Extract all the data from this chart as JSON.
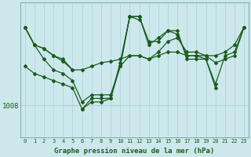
{
  "xlabel": "Graphe pression niveau de la mer (hPa)",
  "background_color": "#cce8ed",
  "line_color": "#1a5c1a",
  "tick_label_color": "#1a5c1a",
  "xlabel_color": "#1a5c1a",
  "grid_color": "#b0cdd4",
  "marker": "D",
  "marker_size": 2.0,
  "line_width": 0.9,
  "ylim_min": 1003.5,
  "ylim_max": 1022.5,
  "xlim_min": 0,
  "xlim_max": 23,
  "ytick_values": [
    1008
  ],
  "series": [
    [
      1019.0,
      1016.5,
      1016.0,
      1015.0,
      1014.5,
      1013.0,
      null,
      null,
      null,
      null,
      1013.5,
      1020.5,
      1020.0,
      null,
      null,
      null,
      null,
      null,
      null,
      null,
      null,
      null,
      null,
      null
    ],
    [
      1019.0,
      1016.5,
      1016.0,
      1015.0,
      1014.2,
      1013.0,
      1013.0,
      1013.5,
      1014.0,
      1014.2,
      1014.5,
      1015.0,
      1015.0,
      1014.5,
      1015.0,
      1015.5,
      1015.5,
      1015.0,
      1015.0,
      1015.0,
      1014.0,
      1014.5,
      1015.0,
      1019.0
    ],
    [
      1019.0,
      1016.5,
      1014.5,
      1013.0,
      1012.5,
      1011.5,
      1008.5,
      1009.5,
      1009.5,
      1009.5,
      1013.5,
      1015.0,
      1015.0,
      1014.5,
      1015.5,
      1017.0,
      1017.5,
      1015.5,
      1015.5,
      1015.0,
      1015.0,
      1015.5,
      1016.5,
      1019.0
    ],
    [
      1013.5,
      1012.5,
      1012.0,
      1011.5,
      1011.0,
      1010.5,
      1007.5,
      1009.0,
      1009.0,
      1009.0,
      1013.5,
      1020.5,
      1020.5,
      1016.5,
      1017.5,
      1018.5,
      1018.0,
      1015.0,
      1015.0,
      1014.5,
      1010.5,
      null,
      null,
      null
    ],
    [
      null,
      null,
      null,
      null,
      null,
      null,
      1007.5,
      1008.5,
      1008.5,
      1009.0,
      1014.0,
      1020.5,
      1020.5,
      1017.0,
      1017.0,
      1018.5,
      1018.5,
      1014.5,
      1014.5,
      1014.5,
      1011.0,
      1015.0,
      1015.5,
      1019.0
    ]
  ]
}
